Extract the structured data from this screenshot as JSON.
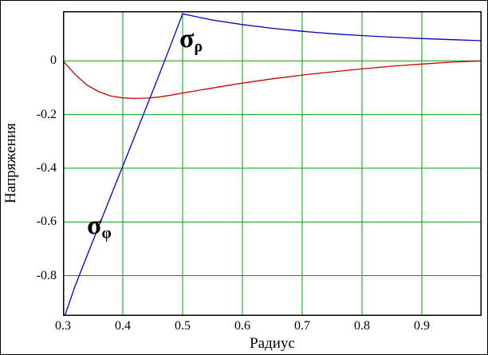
{
  "figure": {
    "background": "#ffffff",
    "border_color": "#000000"
  },
  "labels": {
    "rho": {
      "base": "σ",
      "sub": "ρ"
    },
    "phi": {
      "base": "σ",
      "sub": "φ"
    }
  },
  "chart_data": {
    "type": "line",
    "title": "",
    "xlabel": "Радиус",
    "ylabel": "Напряжения",
    "xlim": [
      0.3,
      1.0
    ],
    "ylim": [
      -0.95,
      0.185
    ],
    "grid": true,
    "grid_color": "#00a000",
    "frame_color": "#000000",
    "legend_position": "none",
    "x_ticks": [
      {
        "value": 0.3,
        "label": "0.3"
      },
      {
        "value": 0.4,
        "label": "0.4"
      },
      {
        "value": 0.5,
        "label": "0.5"
      },
      {
        "value": 0.6,
        "label": "0.6"
      },
      {
        "value": 0.7,
        "label": "0.7"
      },
      {
        "value": 0.8,
        "label": "0.8"
      },
      {
        "value": 0.9,
        "label": "0.9"
      }
    ],
    "y_ticks": [
      {
        "value": 0,
        "label": "0"
      },
      {
        "value": -0.2,
        "label": "-0.2"
      },
      {
        "value": -0.4,
        "label": "-0.4"
      },
      {
        "value": -0.6,
        "label": "-0.6"
      },
      {
        "value": -0.8,
        "label": "-0.8"
      }
    ],
    "series": [
      {
        "name": "sigma_phi",
        "label": "σφ",
        "color": "#0000bf",
        "points": [
          [
            0.3,
            -0.97
          ],
          [
            0.32,
            -0.84
          ],
          [
            0.34,
            -0.727
          ],
          [
            0.36,
            -0.615
          ],
          [
            0.38,
            -0.503
          ],
          [
            0.4,
            -0.392
          ],
          [
            0.42,
            -0.281
          ],
          [
            0.44,
            -0.169
          ],
          [
            0.46,
            -0.057
          ],
          [
            0.48,
            0.058
          ],
          [
            0.5,
            0.175
          ],
          [
            0.55,
            0.152
          ],
          [
            0.6,
            0.135
          ],
          [
            0.65,
            0.121
          ],
          [
            0.7,
            0.11
          ],
          [
            0.75,
            0.101
          ],
          [
            0.8,
            0.094
          ],
          [
            0.85,
            0.088
          ],
          [
            0.9,
            0.083
          ],
          [
            0.95,
            0.079
          ],
          [
            1.0,
            0.075
          ]
        ]
      },
      {
        "name": "sigma_rho",
        "label": "σρ",
        "color": "#cc0000",
        "points": [
          [
            0.3,
            0.0
          ],
          [
            0.32,
            -0.05
          ],
          [
            0.34,
            -0.09
          ],
          [
            0.36,
            -0.115
          ],
          [
            0.38,
            -0.131
          ],
          [
            0.4,
            -0.138
          ],
          [
            0.42,
            -0.14
          ],
          [
            0.44,
            -0.139
          ],
          [
            0.46,
            -0.135
          ],
          [
            0.48,
            -0.128
          ],
          [
            0.5,
            -0.12
          ],
          [
            0.55,
            -0.101
          ],
          [
            0.6,
            -0.083
          ],
          [
            0.65,
            -0.067
          ],
          [
            0.7,
            -0.053
          ],
          [
            0.75,
            -0.041
          ],
          [
            0.8,
            -0.03
          ],
          [
            0.85,
            -0.02
          ],
          [
            0.9,
            -0.012
          ],
          [
            0.95,
            -0.005
          ],
          [
            1.0,
            0.0
          ]
        ]
      }
    ]
  }
}
